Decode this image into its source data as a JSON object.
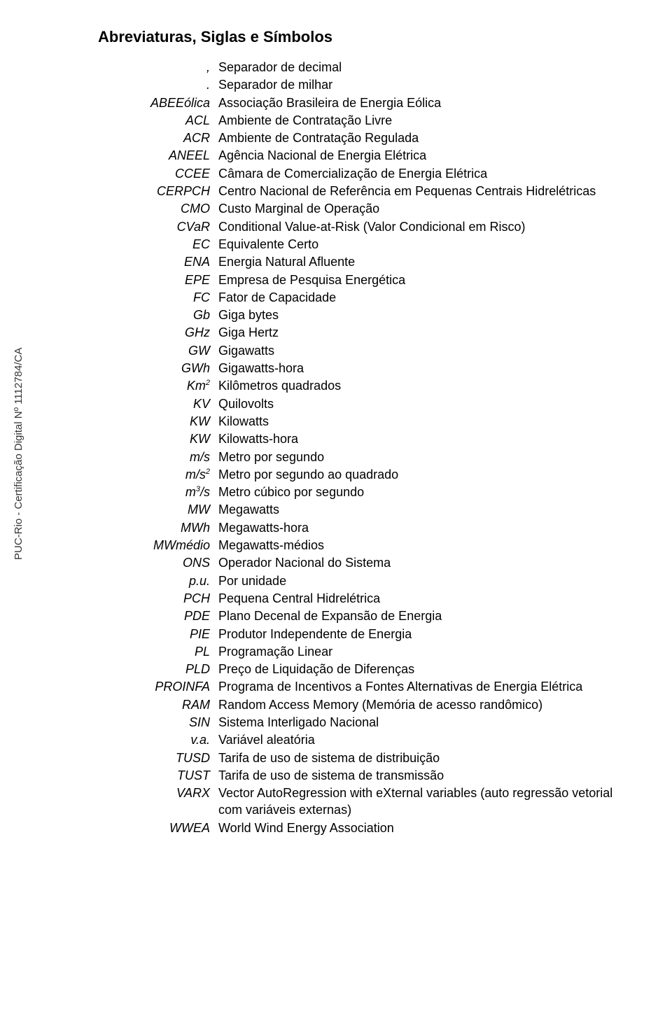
{
  "sidetext": "PUC-Rio - Certificação Digital Nº 1112784/CA",
  "title": "Abreviaturas, Siglas e Símbolos",
  "rows": [
    {
      "abbr": ",",
      "desc": "Separador de decimal"
    },
    {
      "abbr": ".",
      "desc": "Separador de milhar"
    },
    {
      "abbr": "ABEEólica",
      "desc": "Associação Brasileira de Energia Eólica"
    },
    {
      "abbr": "ACL",
      "desc": "Ambiente de Contratação Livre"
    },
    {
      "abbr": "ACR",
      "desc": "Ambiente de Contratação Regulada"
    },
    {
      "abbr": "ANEEL",
      "desc": "Agência Nacional de Energia Elétrica"
    },
    {
      "abbr": "CCEE",
      "desc": "Câmara de Comercialização de Energia Elétrica"
    },
    {
      "abbr": "CERPCH",
      "desc": "Centro Nacional de Referência em Pequenas Centrais Hidrelétricas"
    },
    {
      "abbr": "CMO",
      "desc": "Custo Marginal de Operação"
    },
    {
      "abbr": "CVaR",
      "desc": "Conditional Value-at-Risk (Valor Condicional em Risco)"
    },
    {
      "abbr": "EC",
      "desc": "Equivalente Certo"
    },
    {
      "abbr": "ENA",
      "desc": "Energia Natural Afluente"
    },
    {
      "abbr": "EPE",
      "desc": "Empresa de Pesquisa Energética"
    },
    {
      "abbr": "FC",
      "desc": "Fator de Capacidade"
    },
    {
      "abbr": "Gb",
      "desc": "Giga bytes"
    },
    {
      "abbr": "GHz",
      "desc": "Giga Hertz"
    },
    {
      "abbr": "GW",
      "desc": "Gigawatts"
    },
    {
      "abbr": "GWh",
      "desc": "Gigawatts-hora"
    },
    {
      "abbr_html": "Km<sup>2</sup>",
      "desc": "Kilômetros quadrados"
    },
    {
      "abbr": "KV",
      "desc": "Quilovolts"
    },
    {
      "abbr": "KW",
      "desc": "Kilowatts"
    },
    {
      "abbr": "KW",
      "desc": "Kilowatts-hora"
    },
    {
      "abbr": "m/s",
      "desc": "Metro por segundo"
    },
    {
      "abbr_html": "m/s<sup>2</sup>",
      "desc": "Metro por segundo ao quadrado"
    },
    {
      "abbr_html": "m<sup>3</sup>/s",
      "desc": "Metro cúbico por segundo"
    },
    {
      "abbr": "MW",
      "desc": "Megawatts"
    },
    {
      "abbr": "MWh",
      "desc": "Megawatts-hora"
    },
    {
      "abbr": "MWmédio",
      "desc": "Megawatts-médios"
    },
    {
      "abbr": "ONS",
      "desc": "Operador Nacional do Sistema"
    },
    {
      "abbr": "p.u.",
      "desc": "Por unidade"
    },
    {
      "abbr": "PCH",
      "desc": "Pequena Central Hidrelétrica"
    },
    {
      "abbr": "PDE",
      "desc": "Plano Decenal de Expansão de Energia"
    },
    {
      "abbr": "PIE",
      "desc": "Produtor Independente de Energia"
    },
    {
      "abbr": "PL",
      "desc": "Programação Linear"
    },
    {
      "abbr": "PLD",
      "desc": "Preço de Liquidação de Diferenças"
    },
    {
      "abbr": "PROINFA",
      "desc": "Programa de Incentivos a Fontes Alternativas de Energia Elétrica"
    },
    {
      "abbr": "RAM",
      "desc": "Random Access Memory (Memória de acesso randômico)"
    },
    {
      "abbr": "SIN",
      "desc": "Sistema Interligado Nacional"
    },
    {
      "abbr": "v.a.",
      "desc": "Variável aleatória"
    },
    {
      "abbr": "TUSD",
      "desc": "Tarifa de uso de sistema de distribuição"
    },
    {
      "abbr": "TUST",
      "desc": "Tarifa de uso de sistema de transmissão"
    },
    {
      "abbr": "VARX",
      "desc": "Vector AutoRegression with eXternal variables (auto regressão vetorial com variáveis externas)"
    },
    {
      "abbr": "WWEA",
      "desc": "World Wind Energy Association"
    }
  ]
}
